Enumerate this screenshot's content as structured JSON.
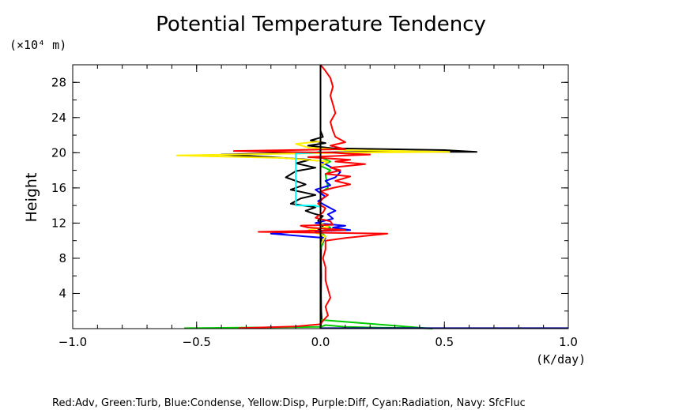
{
  "chart_data": {
    "type": "line",
    "title": "Potential Temperature Tendency",
    "y_unit_label": "(×10⁴ m)",
    "x_unit_label": "(K/day)",
    "ylabel": "Height",
    "xlabel": "",
    "xlim": [
      -1.0,
      1.0
    ],
    "ylim": [
      0,
      30
    ],
    "x_tick_labels": [
      "−1.0",
      "−0.5",
      "0.0",
      "0.5",
      "1.0"
    ],
    "x_ticks": [
      -1.0,
      -0.5,
      0.0,
      0.5,
      1.0
    ],
    "y_tick_labels": [
      "4",
      "8",
      "12",
      "16",
      "20",
      "24",
      "28"
    ],
    "y_ticks": [
      4,
      8,
      12,
      16,
      20,
      24,
      28
    ],
    "legend_text": "Red:Adv, Green:Turb, Blue:Condense, Yellow:Disp, Purple:Diff, Cyan:Radiation, Navy: SfcFluc",
    "grid": false,
    "series": [
      {
        "color": "#000000",
        "key": "black",
        "points": [
          [
            0,
            0
          ],
          [
            0.002,
            0.5
          ],
          [
            0.005,
            1
          ],
          [
            0.003,
            2
          ],
          [
            0.002,
            4
          ],
          [
            0.003,
            6
          ],
          [
            0.002,
            8
          ],
          [
            0.003,
            10
          ],
          [
            0.005,
            10.8
          ],
          [
            -0.01,
            11.2
          ],
          [
            0.01,
            11.6
          ],
          [
            -0.01,
            12.3
          ],
          [
            0.01,
            12.8
          ],
          [
            -0.03,
            13.1
          ],
          [
            -0.06,
            13.4
          ],
          [
            -0.02,
            13.8
          ],
          [
            -0.12,
            14.2
          ],
          [
            -0.08,
            14.8
          ],
          [
            -0.02,
            15.2
          ],
          [
            -0.12,
            15.8
          ],
          [
            -0.06,
            16.4
          ],
          [
            -0.14,
            17.2
          ],
          [
            -0.1,
            17.9
          ],
          [
            -0.02,
            18.3
          ],
          [
            -0.1,
            18.8
          ],
          [
            -0.04,
            19.2
          ],
          [
            -0.2,
            19.5
          ],
          [
            -0.4,
            19.8
          ],
          [
            -0.1,
            20.0
          ],
          [
            0.2,
            20.1
          ],
          [
            0.63,
            20.1
          ],
          [
            0.5,
            20.3
          ],
          [
            0.05,
            20.5
          ],
          [
            -0.05,
            20.8
          ],
          [
            0.02,
            21.1
          ],
          [
            -0.04,
            21.4
          ],
          [
            0.01,
            21.8
          ],
          [
            0.0,
            22.5
          ],
          [
            0.0,
            30
          ]
        ]
      },
      {
        "color": "#00cc00",
        "key": "green",
        "points": [
          [
            -0.55,
            0.05
          ],
          [
            0.0,
            0.2
          ],
          [
            0.02,
            0.4
          ],
          [
            0.1,
            0.2
          ],
          [
            0.25,
            0.1
          ],
          [
            0.4,
            0.05
          ],
          [
            0.45,
            0.0
          ],
          [
            0.0,
            1
          ],
          [
            0.0,
            4
          ],
          [
            0.0,
            9
          ],
          [
            0.02,
            10.5
          ],
          [
            0.0,
            11
          ],
          [
            0.04,
            11.5
          ],
          [
            0.0,
            12
          ],
          [
            0.0,
            15.5
          ],
          [
            0.03,
            16
          ],
          [
            0.02,
            17.5
          ],
          [
            0.04,
            18
          ],
          [
            0.0,
            18.5
          ],
          [
            0.04,
            19
          ],
          [
            0.0,
            19.5
          ],
          [
            0.0,
            30
          ]
        ]
      },
      {
        "color": "#0000ff",
        "key": "blue",
        "points": [
          [
            0.0,
            0.4
          ],
          [
            0.0,
            4
          ],
          [
            0.0,
            9.5
          ],
          [
            0.02,
            10.3
          ],
          [
            -0.2,
            10.8
          ],
          [
            -0.1,
            11
          ],
          [
            0.0,
            11.1
          ],
          [
            0.12,
            11.2
          ],
          [
            0.05,
            11.5
          ],
          [
            0.1,
            11.7
          ],
          [
            -0.02,
            12.0
          ],
          [
            0.05,
            12.5
          ],
          [
            0.03,
            13.0
          ],
          [
            0.06,
            13.4
          ],
          [
            0.02,
            14.0
          ],
          [
            -0.01,
            14.5
          ],
          [
            0.02,
            15
          ],
          [
            -0.02,
            15.8
          ],
          [
            0.04,
            16.3
          ],
          [
            0.02,
            16.8
          ],
          [
            0.06,
            17.2
          ],
          [
            0.08,
            17.8
          ],
          [
            0.04,
            18.4
          ],
          [
            0.0,
            19.0
          ],
          [
            0.0,
            30
          ]
        ]
      },
      {
        "color": "#ffee00",
        "key": "yellow",
        "points": [
          [
            0.0,
            0
          ],
          [
            0.0,
            9.5
          ],
          [
            0.02,
            10.5
          ],
          [
            -0.05,
            11.2
          ],
          [
            0.03,
            11.6
          ],
          [
            0.0,
            12
          ],
          [
            0.0,
            18.5
          ],
          [
            0.03,
            19.0
          ],
          [
            -0.15,
            19.4
          ],
          [
            -0.58,
            19.7
          ],
          [
            -0.1,
            19.9
          ],
          [
            0.1,
            20.0
          ],
          [
            0.52,
            20.1
          ],
          [
            0.1,
            20.3
          ],
          [
            -0.05,
            20.6
          ],
          [
            -0.1,
            21.0
          ],
          [
            0.0,
            21.3
          ],
          [
            0.0,
            30
          ]
        ]
      },
      {
        "color": "#00ffff",
        "key": "cyan",
        "points": [
          [
            0.0,
            0
          ],
          [
            0.0,
            13.9
          ],
          [
            -0.02,
            13.9
          ],
          [
            -0.02,
            14.0
          ],
          [
            -0.1,
            14.0
          ],
          [
            -0.1,
            19.9
          ],
          [
            -0.02,
            20.0
          ],
          [
            0.0,
            20.2
          ],
          [
            0.0,
            30
          ]
        ]
      },
      {
        "color": "#ff0000",
        "key": "red",
        "points": [
          [
            -0.33,
            0.05
          ],
          [
            -0.1,
            0.25
          ],
          [
            0.0,
            0.5
          ],
          [
            0.01,
            0.9
          ],
          [
            0.03,
            1.5
          ],
          [
            0.02,
            2.5
          ],
          [
            0.04,
            3.5
          ],
          [
            0.03,
            4.5
          ],
          [
            0.02,
            5.5
          ],
          [
            0.02,
            7
          ],
          [
            0.01,
            8
          ],
          [
            0.02,
            9
          ],
          [
            0.02,
            10
          ],
          [
            0.1,
            10.3
          ],
          [
            0.27,
            10.8
          ],
          [
            -0.25,
            11.0
          ],
          [
            0.1,
            11.2
          ],
          [
            -0.05,
            11.5
          ],
          [
            -0.08,
            11.7
          ],
          [
            0.05,
            11.8
          ],
          [
            0.04,
            12.2
          ],
          [
            -0.02,
            12.6
          ],
          [
            0.01,
            13.2
          ],
          [
            0.02,
            13.7
          ],
          [
            -0.01,
            14.2
          ],
          [
            0.01,
            14.8
          ],
          [
            0.03,
            15.2
          ],
          [
            0.0,
            15.6
          ],
          [
            0.05,
            16.0
          ],
          [
            0.12,
            16.4
          ],
          [
            0.06,
            16.8
          ],
          [
            0.12,
            17.3
          ],
          [
            0.02,
            17.6
          ],
          [
            0.08,
            18.0
          ],
          [
            0.04,
            18.3
          ],
          [
            0.18,
            18.7
          ],
          [
            0.06,
            19.0
          ],
          [
            0.12,
            19.2
          ],
          [
            -0.05,
            19.5
          ],
          [
            0.2,
            19.8
          ],
          [
            0.1,
            19.9
          ],
          [
            0.05,
            20.0
          ],
          [
            -0.35,
            20.2
          ],
          [
            0.1,
            20.4
          ],
          [
            0.04,
            20.8
          ],
          [
            0.1,
            21.2
          ],
          [
            0.06,
            21.8
          ],
          [
            0.05,
            22.5
          ],
          [
            0.04,
            23.5
          ],
          [
            0.06,
            24.5
          ],
          [
            0.05,
            25.5
          ],
          [
            0.04,
            26.5
          ],
          [
            0.05,
            27.5
          ],
          [
            0.04,
            28.5
          ],
          [
            0.02,
            29.3
          ],
          [
            0.0,
            30
          ]
        ]
      },
      {
        "color": "#000080",
        "key": "navy",
        "points": [
          [
            0.0,
            0.05
          ],
          [
            0.45,
            0.05
          ],
          [
            1.0,
            0.05
          ]
        ]
      }
    ]
  }
}
